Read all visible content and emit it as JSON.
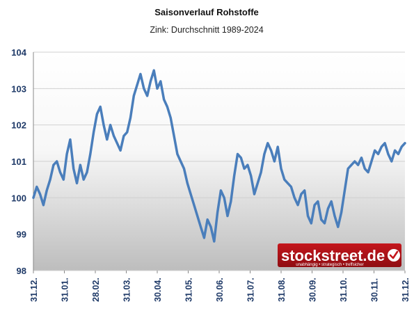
{
  "chart_data": {
    "type": "line",
    "title": "Saisonverlauf Rohstoffe",
    "subtitle": "Zink: Durchschnitt 1989-2024",
    "xlabel": "",
    "ylabel": "",
    "ylim": [
      98,
      104
    ],
    "yticks": [
      "98",
      "99",
      "100",
      "101",
      "102",
      "103",
      "104"
    ],
    "xticks": [
      "31.12.",
      "31.01.",
      "28.02.",
      "31.03.",
      "30.04.",
      "31.05.",
      "30.06.",
      "31.07.",
      "31.08.",
      "30.09.",
      "31.10.",
      "30.11.",
      "31.12."
    ],
    "grid": "horizontal",
    "line_color": "#4a7ebb",
    "series": [
      {
        "name": "",
        "values": [
          [
            0,
            100.0
          ],
          [
            2,
            100.3
          ],
          [
            4,
            100.1
          ],
          [
            6,
            99.8
          ],
          [
            8,
            100.2
          ],
          [
            10,
            100.5
          ],
          [
            12,
            100.9
          ],
          [
            14,
            101.0
          ],
          [
            16,
            100.7
          ],
          [
            18,
            100.5
          ],
          [
            20,
            101.2
          ],
          [
            22,
            101.6
          ],
          [
            24,
            100.8
          ],
          [
            26,
            100.4
          ],
          [
            28,
            100.9
          ],
          [
            30,
            100.5
          ],
          [
            32,
            100.7
          ],
          [
            34,
            101.2
          ],
          [
            36,
            101.8
          ],
          [
            38,
            102.3
          ],
          [
            40,
            102.5
          ],
          [
            42,
            102.0
          ],
          [
            44,
            101.6
          ],
          [
            46,
            102.0
          ],
          [
            48,
            101.7
          ],
          [
            50,
            101.5
          ],
          [
            52,
            101.3
          ],
          [
            54,
            101.7
          ],
          [
            56,
            101.8
          ],
          [
            58,
            102.2
          ],
          [
            60,
            102.8
          ],
          [
            62,
            103.1
          ],
          [
            64,
            103.4
          ],
          [
            66,
            103.0
          ],
          [
            68,
            102.8
          ],
          [
            70,
            103.2
          ],
          [
            72,
            103.5
          ],
          [
            74,
            103.0
          ],
          [
            76,
            103.2
          ],
          [
            78,
            102.7
          ],
          [
            80,
            102.5
          ],
          [
            82,
            102.2
          ],
          [
            84,
            101.7
          ],
          [
            86,
            101.2
          ],
          [
            88,
            101.0
          ],
          [
            90,
            100.8
          ],
          [
            92,
            100.4
          ],
          [
            94,
            100.1
          ],
          [
            96,
            99.8
          ],
          [
            98,
            99.5
          ],
          [
            100,
            99.2
          ],
          [
            102,
            98.9
          ],
          [
            104,
            99.4
          ],
          [
            106,
            99.2
          ],
          [
            108,
            98.8
          ],
          [
            110,
            99.6
          ],
          [
            112,
            100.2
          ],
          [
            114,
            100.0
          ],
          [
            116,
            99.5
          ],
          [
            118,
            99.9
          ],
          [
            120,
            100.6
          ],
          [
            122,
            101.2
          ],
          [
            124,
            101.1
          ],
          [
            126,
            100.8
          ],
          [
            128,
            100.9
          ],
          [
            130,
            100.6
          ],
          [
            132,
            100.1
          ],
          [
            134,
            100.4
          ],
          [
            136,
            100.7
          ],
          [
            138,
            101.2
          ],
          [
            140,
            101.5
          ],
          [
            142,
            101.3
          ],
          [
            144,
            101.0
          ],
          [
            146,
            101.4
          ],
          [
            148,
            100.8
          ],
          [
            150,
            100.5
          ],
          [
            152,
            100.4
          ],
          [
            154,
            100.3
          ],
          [
            156,
            100.0
          ],
          [
            158,
            99.8
          ],
          [
            160,
            100.1
          ],
          [
            162,
            100.2
          ],
          [
            164,
            99.5
          ],
          [
            166,
            99.3
          ],
          [
            168,
            99.8
          ],
          [
            170,
            99.9
          ],
          [
            172,
            99.4
          ],
          [
            174,
            99.3
          ],
          [
            176,
            99.7
          ],
          [
            178,
            99.9
          ],
          [
            180,
            99.5
          ],
          [
            182,
            99.2
          ],
          [
            184,
            99.6
          ],
          [
            186,
            100.2
          ],
          [
            188,
            100.8
          ],
          [
            190,
            100.9
          ],
          [
            192,
            101.0
          ],
          [
            194,
            100.9
          ],
          [
            196,
            101.1
          ],
          [
            198,
            100.8
          ],
          [
            200,
            100.7
          ],
          [
            202,
            101.0
          ],
          [
            204,
            101.3
          ],
          [
            206,
            101.2
          ],
          [
            208,
            101.4
          ],
          [
            210,
            101.5
          ],
          [
            212,
            101.2
          ],
          [
            214,
            101.0
          ],
          [
            216,
            101.3
          ],
          [
            218,
            101.2
          ],
          [
            220,
            101.4
          ],
          [
            222,
            101.5
          ]
        ]
      }
    ]
  },
  "watermark": {
    "brand": "stockstreet.de",
    "tagline": "unabhängig • strategisch • treffsicher"
  }
}
